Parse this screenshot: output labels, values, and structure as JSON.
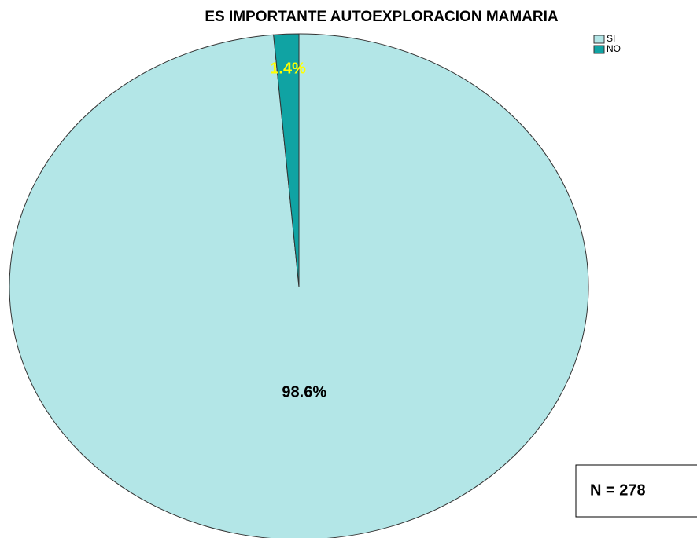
{
  "chart_data": {
    "type": "pie",
    "title": "ES IMPORTANTE AUTOEXPLORACION MAMARIA",
    "categories": [
      "SI",
      "NO"
    ],
    "values": [
      98.6,
      1.4
    ],
    "value_labels": [
      "98.6%",
      "1.4%"
    ],
    "colors": [
      "#b3e6e7",
      "#10a3a3"
    ],
    "label_colors": [
      "#000000",
      "#ffff00"
    ],
    "annotation": "N = 278",
    "legend": "top-right"
  }
}
